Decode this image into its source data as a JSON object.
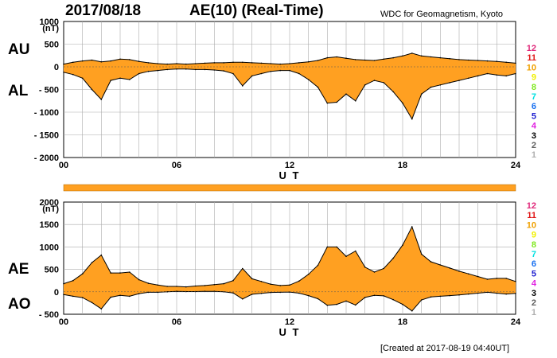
{
  "header": {
    "date": "2017/08/18",
    "title": "AE(10) (Real-Time)",
    "institution": "WDC for Geomagnetism, Kyoto"
  },
  "footer": "[Created at 2017-08-19 04:40UT]",
  "colors": {
    "fill": "#ffa021",
    "line": "#000000",
    "grid": "#aaaaaa"
  },
  "station_legend": [
    {
      "label": "12",
      "color": "#e0287a"
    },
    {
      "label": "11",
      "color": "#e01818"
    },
    {
      "label": "10",
      "color": "#f0a000"
    },
    {
      "label": "9",
      "color": "#f0f000"
    },
    {
      "label": "8",
      "color": "#80e820"
    },
    {
      "label": "7",
      "color": "#00e0e0"
    },
    {
      "label": "6",
      "color": "#1870f0"
    },
    {
      "label": "5",
      "color": "#2020d0"
    },
    {
      "label": "4",
      "color": "#e020e0"
    },
    {
      "label": "3",
      "color": "#000000"
    },
    {
      "label": "2",
      "color": "#606060"
    },
    {
      "label": "1",
      "color": "#b0b0b0"
    }
  ],
  "chart_data": [
    {
      "type": "area",
      "panel": "AU/AL",
      "upper_label": "AU",
      "lower_label": "AL",
      "unit": "(nT)",
      "xlabel": "U T",
      "xlim": [
        0,
        24
      ],
      "xticks": [
        "00",
        "06",
        "12",
        "18",
        "24"
      ],
      "ylim": [
        -2000,
        1000
      ],
      "yticks": [
        "1000",
        "500",
        "0",
        "- 500",
        "- 1000",
        "- 1500",
        "- 2000"
      ],
      "grid": true,
      "series": [
        {
          "name": "AU",
          "x": [
            0,
            0.5,
            1,
            1.5,
            2,
            2.5,
            3,
            3.5,
            4,
            4.5,
            5,
            5.5,
            6,
            6.5,
            7,
            7.5,
            8,
            8.5,
            9,
            9.5,
            10,
            10.5,
            11,
            11.5,
            12,
            12.5,
            13,
            13.5,
            14,
            14.5,
            15,
            15.5,
            16,
            16.5,
            17,
            17.5,
            18,
            18.5,
            19,
            19.5,
            20,
            20.5,
            21,
            21.5,
            22,
            22.5,
            23,
            23.5,
            24
          ],
          "values": [
            60,
            100,
            130,
            150,
            110,
            130,
            170,
            160,
            120,
            90,
            70,
            60,
            70,
            60,
            70,
            80,
            90,
            90,
            100,
            100,
            90,
            80,
            70,
            60,
            70,
            90,
            110,
            140,
            200,
            220,
            190,
            160,
            150,
            140,
            170,
            200,
            240,
            300,
            240,
            220,
            200,
            180,
            160,
            150,
            140,
            130,
            120,
            100,
            80
          ]
        },
        {
          "name": "AL",
          "x": [
            0,
            0.5,
            1,
            1.5,
            2,
            2.5,
            3,
            3.5,
            4,
            4.5,
            5,
            5.5,
            6,
            6.5,
            7,
            7.5,
            8,
            8.5,
            9,
            9.5,
            10,
            10.5,
            11,
            11.5,
            12,
            12.5,
            13,
            13.5,
            14,
            14.5,
            15,
            15.5,
            16,
            16.5,
            17,
            17.5,
            18,
            18.5,
            19,
            19.5,
            20,
            20.5,
            21,
            21.5,
            22,
            22.5,
            23,
            23.5,
            24
          ],
          "values": [
            -120,
            -170,
            -250,
            -500,
            -720,
            -300,
            -250,
            -280,
            -150,
            -100,
            -80,
            -60,
            -50,
            -50,
            -60,
            -60,
            -70,
            -90,
            -150,
            -420,
            -200,
            -150,
            -100,
            -80,
            -80,
            -150,
            -280,
            -450,
            -800,
            -780,
            -600,
            -750,
            -400,
            -300,
            -350,
            -550,
            -800,
            -1150,
            -600,
            -450,
            -400,
            -350,
            -300,
            -250,
            -200,
            -150,
            -180,
            -200,
            -150
          ]
        }
      ]
    },
    {
      "type": "area",
      "panel": "AE/AO",
      "upper_label": "AE",
      "lower_label": "AO",
      "unit": "(nT)",
      "xlabel": "U T",
      "xlim": [
        0,
        24
      ],
      "xticks": [
        "00",
        "06",
        "12",
        "18",
        "24"
      ],
      "ylim": [
        -500,
        2000
      ],
      "yticks": [
        "2000",
        "1500",
        "1000",
        "500",
        "0",
        "- 500"
      ],
      "grid": true,
      "series": [
        {
          "name": "AE",
          "x": [
            0,
            0.5,
            1,
            1.5,
            2,
            2.5,
            3,
            3.5,
            4,
            4.5,
            5,
            5.5,
            6,
            6.5,
            7,
            7.5,
            8,
            8.5,
            9,
            9.5,
            10,
            10.5,
            11,
            11.5,
            12,
            12.5,
            13,
            13.5,
            14,
            14.5,
            15,
            15.5,
            16,
            16.5,
            17,
            17.5,
            18,
            18.5,
            19,
            19.5,
            20,
            20.5,
            21,
            21.5,
            22,
            22.5,
            23,
            23.5,
            24
          ],
          "values": [
            180,
            250,
            400,
            650,
            820,
            420,
            420,
            440,
            270,
            190,
            150,
            120,
            120,
            110,
            130,
            140,
            160,
            180,
            250,
            520,
            290,
            230,
            170,
            140,
            150,
            240,
            390,
            590,
            1000,
            1000,
            790,
            910,
            550,
            440,
            520,
            750,
            1040,
            1450,
            840,
            670,
            600,
            530,
            460,
            400,
            340,
            280,
            300,
            300,
            230
          ]
        },
        {
          "name": "AO",
          "x": [
            0,
            0.5,
            1,
            1.5,
            2,
            2.5,
            3,
            3.5,
            4,
            4.5,
            5,
            5.5,
            6,
            6.5,
            7,
            7.5,
            8,
            8.5,
            9,
            9.5,
            10,
            10.5,
            11,
            11.5,
            12,
            12.5,
            13,
            13.5,
            14,
            14.5,
            15,
            15.5,
            16,
            16.5,
            17,
            17.5,
            18,
            18.5,
            19,
            19.5,
            20,
            20.5,
            21,
            21.5,
            22,
            22.5,
            23,
            23.5,
            24
          ],
          "values": [
            -60,
            -100,
            -130,
            -240,
            -380,
            -120,
            -80,
            -100,
            -40,
            -10,
            -10,
            0,
            10,
            5,
            5,
            10,
            10,
            0,
            -25,
            -160,
            -55,
            -35,
            -15,
            -10,
            -5,
            -30,
            -85,
            -155,
            -300,
            -280,
            -205,
            -295,
            -125,
            -80,
            -90,
            -175,
            -280,
            -425,
            -180,
            -115,
            -100,
            -85,
            -70,
            -50,
            -30,
            -10,
            -30,
            -50,
            -35
          ]
        }
      ]
    }
  ]
}
